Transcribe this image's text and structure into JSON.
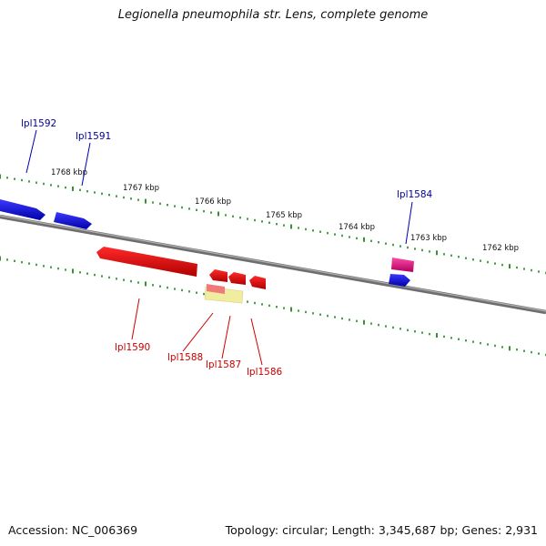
{
  "title": "Legionella pneumophila str. Lens, complete genome",
  "accession": "Accession: NC_006369",
  "topology": "Topology: circular; Length: 3,345,687 bp; Genes: 2,931",
  "colors": {
    "forward_gene": "#0000e0",
    "reverse_gene": "#ee0000",
    "pink_gene": "#e0107a",
    "yellow_feature": "#f0eca0",
    "backbone": "#888888",
    "ticks": "#1a8a1a",
    "forward_label": "#00009a",
    "reverse_label": "#c80000"
  },
  "kbp_labels": [
    "1768 kbp",
    "1767 kbp",
    "1766 kbp",
    "1765 kbp",
    "1764 kbp",
    "1763 kbp",
    "1762 kbp"
  ],
  "forward_genes": [
    "lpl1592",
    "lpl1591",
    "lpl1584"
  ],
  "reverse_genes": [
    "lpl1590",
    "lpl1588",
    "lpl1587",
    "lpl1586"
  ]
}
